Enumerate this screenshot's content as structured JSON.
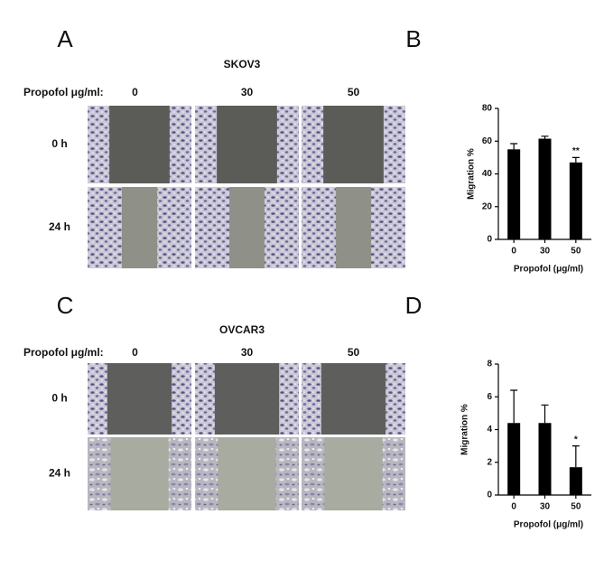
{
  "panels": {
    "A": {
      "label": "A",
      "title": "SKOV3",
      "row_header": "Propofol μg/ml:",
      "columns": [
        "0",
        "30",
        "50"
      ],
      "rows": [
        "0 h",
        "24 h"
      ]
    },
    "B": {
      "label": "B"
    },
    "C": {
      "label": "C",
      "title": "OVCAR3",
      "row_header": "Propofol μg/ml:",
      "columns": [
        "0",
        "30",
        "50"
      ],
      "rows": [
        "0 h",
        "24 h"
      ]
    },
    "D": {
      "label": "D"
    }
  },
  "chart_data": [
    {
      "type": "bar",
      "categories": [
        "0",
        "30",
        "50"
      ],
      "values": [
        55,
        61.5,
        47
      ],
      "errors": [
        3.5,
        1.5,
        3
      ],
      "color": "#000000",
      "ylim": [
        0,
        80
      ],
      "yticks": [
        0,
        20,
        40,
        60,
        80
      ],
      "xlabel": "Propofol (μg/ml)",
      "ylabel": "Migration %",
      "annotations": [
        {
          "category": "50",
          "text": "**"
        }
      ]
    },
    {
      "type": "bar",
      "categories": [
        "0",
        "30",
        "50"
      ],
      "values": [
        4.4,
        4.4,
        1.7
      ],
      "errors": [
        2.0,
        1.1,
        1.3
      ],
      "color": "#000000",
      "ylim": [
        0,
        8
      ],
      "yticks": [
        0,
        2,
        4,
        6,
        8
      ],
      "xlabel": "Propofol (μg/ml)",
      "ylabel": "Migration %",
      "annotations": [
        {
          "category": "50",
          "text": "*"
        }
      ]
    }
  ]
}
